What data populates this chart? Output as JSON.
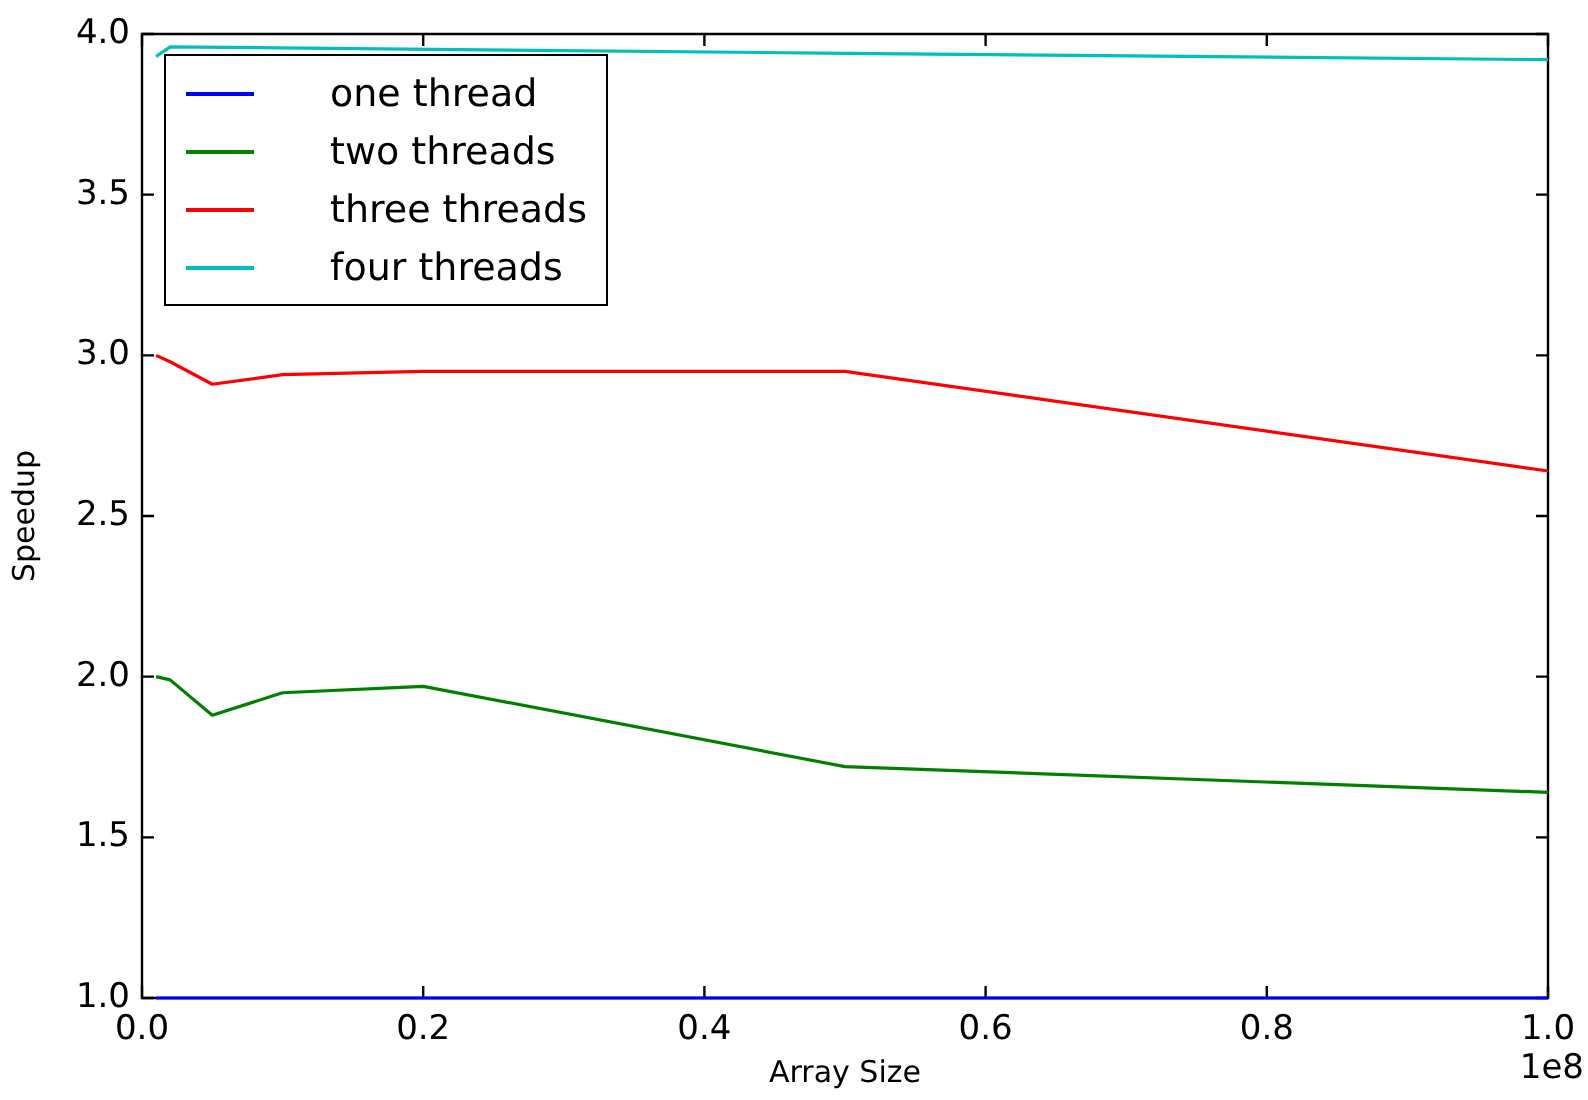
{
  "chart_data": {
    "type": "line",
    "xlabel": "Array Size",
    "ylabel": "Speedup",
    "x": [
      0.01,
      0.02,
      0.05,
      0.1,
      0.2,
      0.5,
      1.0
    ],
    "xlim": [
      0,
      1.0
    ],
    "xticks": [
      {
        "value": 0,
        "label": "0.0"
      },
      0.2,
      0.4,
      0.6,
      0.8,
      {
        "value": 1,
        "label": "1.0"
      }
    ],
    "ylim": [
      1.0,
      4.0
    ],
    "yticks": [
      {
        "value": 1,
        "label": "1.0"
      },
      1.5,
      {
        "value": 2,
        "label": "2.0"
      },
      2.5,
      {
        "value": 3,
        "label": "3.0"
      },
      3.5,
      {
        "value": 4,
        "label": "4.0"
      }
    ],
    "grid": false,
    "legend": "top left",
    "marker": "none",
    "line_style": "solid",
    "annotations": [
      "1e8"
    ],
    "series": [
      {
        "name": "one thread",
        "color": "#0000ff",
        "values": [
          1.0,
          1.0,
          1.0,
          1.0,
          1.0,
          1.0,
          1.0
        ]
      },
      {
        "name": "two threads",
        "color": "#008000",
        "values": [
          2.0,
          1.99,
          1.88,
          1.95,
          1.97,
          1.72,
          1.64
        ]
      },
      {
        "name": "three threads",
        "color": "#ff0000",
        "values": [
          3.0,
          2.98,
          2.91,
          2.94,
          2.95,
          2.95,
          2.64
        ]
      },
      {
        "name": "four threads",
        "color": "#00bfbf",
        "values": [
          3.93,
          3.96,
          null,
          null,
          null,
          3.94,
          3.92
        ]
      }
    ]
  }
}
